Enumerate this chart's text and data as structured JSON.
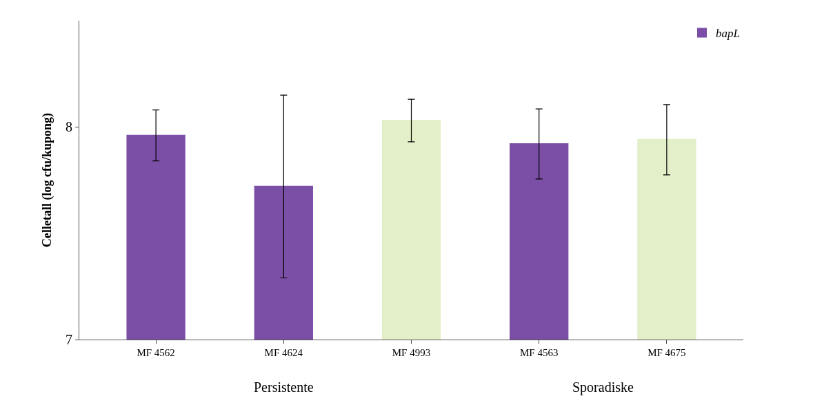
{
  "chart_data": {
    "type": "bar",
    "ylabel": "Celletall (log cfu/kupong)",
    "categories": [
      "MF 4562",
      "MF 4624",
      "MF 4993",
      "MF 4563",
      "MF 4675"
    ],
    "series": [
      {
        "name": "bapL",
        "color": "#7b4fa6",
        "values": [
          7.96,
          7.72,
          null,
          7.92,
          null
        ],
        "errors": [
          0.12,
          0.43,
          null,
          0.165,
          null
        ]
      },
      {
        "color": "#e3efc8",
        "values": [
          null,
          null,
          8.03,
          null,
          7.94
        ],
        "errors": [
          null,
          null,
          0.1,
          null,
          0.165
        ]
      }
    ],
    "ylim": [
      7,
      8.5
    ],
    "yticks": [
      7,
      8
    ],
    "legend": "top right",
    "annotations": [
      "Persistente",
      "Sporadiske"
    ]
  }
}
